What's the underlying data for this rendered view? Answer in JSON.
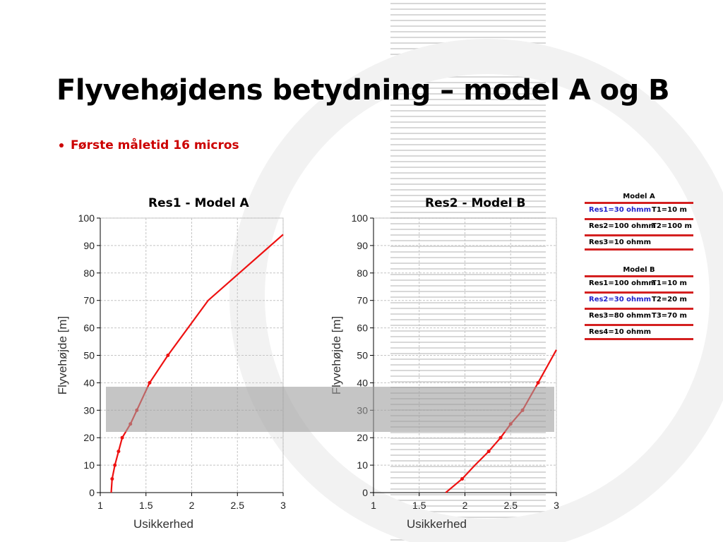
{
  "slide": {
    "title": "Flyvehøjdens betydning – model A og B",
    "bullet": "Første måletid 16 micros",
    "accent_color": "#cc0000"
  },
  "chart_data": [
    {
      "type": "line",
      "title": "Res1 - Model A",
      "xlabel": "Usikkerhed",
      "ylabel": "Flyvehøjde [m]",
      "xlim": [
        1,
        3
      ],
      "ylim": [
        0,
        100
      ],
      "xticks": [
        "1",
        "1.5",
        "2",
        "2.5",
        "3"
      ],
      "yticks": [
        "0",
        "10",
        "20",
        "30",
        "40",
        "50",
        "60",
        "70",
        "80",
        "90",
        "100"
      ],
      "grid": true,
      "line_color": "#ee1111",
      "series": [
        {
          "x": [
            1.12,
            1.13,
            1.16,
            1.2,
            1.24,
            1.33,
            1.4,
            1.54,
            1.74,
            2.18,
            3.0
          ],
          "y": [
            0,
            5,
            10,
            15,
            20,
            25,
            30,
            40,
            50,
            70,
            94
          ],
          "markers": [
            [
              1.13,
              5
            ],
            [
              1.16,
              10
            ],
            [
              1.2,
              15
            ],
            [
              1.24,
              20
            ],
            [
              1.33,
              25
            ],
            [
              1.4,
              30
            ],
            [
              1.54,
              40
            ],
            [
              1.74,
              50
            ]
          ]
        }
      ]
    },
    {
      "type": "line",
      "title": "Res2 - Model B",
      "xlabel": "Usikkerhed",
      "ylabel": "Flyvehøjde [m]",
      "xlim": [
        1,
        3
      ],
      "ylim": [
        0,
        100
      ],
      "xticks": [
        "1",
        "1.5",
        "2",
        "2.5",
        "3"
      ],
      "yticks": [
        "0",
        "10",
        "20",
        "30",
        "40",
        "50",
        "60",
        "70",
        "80",
        "90",
        "100"
      ],
      "grid": true,
      "line_color": "#ee1111",
      "series": [
        {
          "x": [
            1.79,
            1.97,
            2.11,
            2.26,
            2.39,
            2.5,
            2.63,
            2.8,
            3.0
          ],
          "y": [
            0,
            5,
            10,
            15,
            20,
            25,
            30,
            40,
            52
          ],
          "markers": [
            [
              1.97,
              5
            ],
            [
              2.26,
              15
            ],
            [
              2.39,
              20
            ],
            [
              2.5,
              25
            ],
            [
              2.63,
              30
            ],
            [
              2.8,
              40
            ]
          ]
        }
      ]
    }
  ],
  "legends": [
    {
      "title": "Model A",
      "rows": [
        {
          "res": "Res1=30 ohmm",
          "thickness": "T1=10 m",
          "highlight": true
        },
        {
          "res": "Res2=100 ohmm",
          "thickness": "T2=100 m",
          "highlight": false
        },
        {
          "res": "Res3=10 ohmm",
          "thickness": "",
          "highlight": false
        }
      ]
    },
    {
      "title": "Model B",
      "rows": [
        {
          "res": "Res1=100 ohmm",
          "thickness": "T1=10 m",
          "highlight": false
        },
        {
          "res": "Res2=30 ohmm",
          "thickness": "T2=20 m",
          "highlight": true
        },
        {
          "res": "Res3=80 ohmm",
          "thickness": "T3=70 m",
          "highlight": false
        },
        {
          "res": "Res4=10 ohmm",
          "thickness": "",
          "highlight": false
        }
      ]
    }
  ],
  "colors": {
    "highlight_text": "#2222cc",
    "normal_text": "#000000",
    "legend_rule": "#d42020",
    "band": "#9e9e9e"
  }
}
